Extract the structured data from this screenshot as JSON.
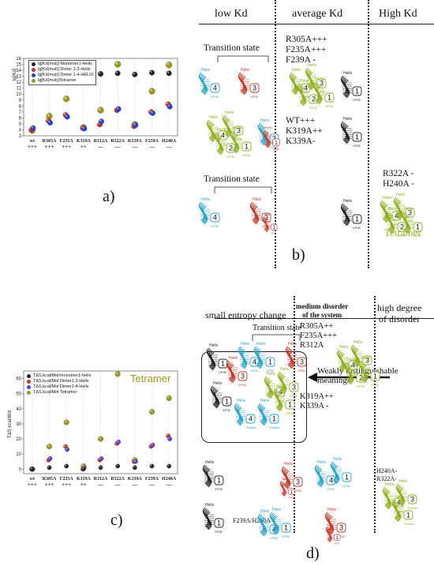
{
  "panel_labels": {
    "a": "a)",
    "b": "b)",
    "c": "c)",
    "d": "d)"
  },
  "chart_data": [
    {
      "type": "scatter",
      "ylabel": "lg[Kd]",
      "ylim": [
        3,
        16
      ],
      "yticks": [
        3,
        4,
        5,
        6,
        7,
        8,
        9,
        10,
        11,
        12,
        13,
        14,
        15,
        16
      ],
      "categories": [
        "wt",
        "R305A",
        "F235A",
        "K319A",
        "R312A",
        "R322A",
        "K339A",
        "F239A",
        "H240A"
      ],
      "effects": [
        "+++",
        "+++",
        "+++",
        "++",
        "—",
        "—",
        "—",
        "—",
        "—"
      ],
      "legend": "top-left",
      "series": [
        {
          "name": "lg[Kd(mut)] Monomer1-Helix",
          "color": "#222222",
          "values": [
            13.5,
            13.5,
            13.6,
            13.4,
            13.4,
            13.5,
            13.3,
            13.6,
            13.5
          ]
        },
        {
          "name": "lg[Kd(mut)] Dimer 1-3-Helix",
          "color": "#d62728",
          "values": [
            4.0,
            5.5,
            6.5,
            4.3,
            4.9,
            7.3,
            4.6,
            7.0,
            8.3
          ]
        },
        {
          "name": "lg[Kd(mut)] Dimer 1-4-HELIX",
          "color": "#2a3fd6",
          "values": [
            4.3,
            5.2,
            6.2,
            4.2,
            5.4,
            7.5,
            4.8,
            6.8,
            7.9
          ]
        },
        {
          "name": "lg[Kd(mut)]Tetramer",
          "color": "#9a9a1e",
          "values": [
            3.9,
            6.3,
            9.2,
            4.4,
            7.3,
            15.0,
            4.9,
            10.5,
            14.9
          ]
        }
      ]
    },
    {
      "type": "scatter",
      "ylabel": "TΔS kcal/Mol",
      "ylim": [
        -3,
        65
      ],
      "yticks": [
        0,
        10,
        20,
        30,
        40,
        50,
        60
      ],
      "categories": [
        "wt",
        "R305A",
        "F235A",
        "K319A",
        "R312A",
        "R322A",
        "K339A",
        "F239A",
        "H240A"
      ],
      "effects": [
        "+++",
        "+++",
        "+++",
        "++",
        "—",
        "—",
        "—",
        "—",
        "—"
      ],
      "legend": "top-left",
      "annotation": "Tetramer",
      "series": [
        {
          "name": "TΔS,kcal/Mol/monomer1-helix",
          "color": "#222222",
          "values": [
            0,
            1,
            2,
            0,
            1,
            2,
            1,
            2,
            2
          ]
        },
        {
          "name": "TΔS,kcal/Mol Dimer1-3-Helix",
          "color": "#c0392b",
          "values": [
            0,
            6,
            15,
            0,
            6,
            17,
            5,
            15,
            22
          ]
        },
        {
          "name": "TΔS,kcal/Mol Dimer1-4-Helix",
          "color": "#5e3fd6",
          "values": [
            0,
            7,
            13,
            1,
            7,
            18,
            5,
            16,
            20
          ]
        },
        {
          "name": "TΔS,kcal/Mol Tetramer",
          "color": "#9a9a1e",
          "values": [
            0,
            15,
            31,
            2,
            20,
            63,
            6,
            38,
            47
          ]
        }
      ]
    }
  ],
  "panel_b": {
    "columns": {
      "low": "low Kd",
      "average": "average Kd",
      "high": "High Kd"
    },
    "transition_top": "Transition state",
    "transition_bottom": "Transition state",
    "group1": "R305A+++\nF235A+++\nF239A -",
    "group2": "WT+++\nK319A++\nK339A-",
    "group3": "R322A -\nH240A -",
    "tetramer": "Tetramer",
    "labels": {
      "helix": "Helix",
      "vp": "VP35",
      "n1": "1",
      "n2": "2",
      "n3": "3",
      "n4": "4"
    }
  },
  "panel_d": {
    "columns": {
      "small": "small entropy change",
      "medium": "medium disorder\nof the system",
      "high": "high degree\nof disorder"
    },
    "transition": "Transition state",
    "group1": "R305A++\nF235A+++\nR312A",
    "weak": "Weakly distinguishable\nmeanings",
    "group2": "K319A++\nK339A -",
    "group3": "H240A-\nR322A-",
    "bottom_label": "F239A/H240A",
    "labels": {
      "helix": "Helix",
      "vp": "VP35",
      "protein": "Protein",
      "n1": "1",
      "n2": "2",
      "n3": "3",
      "n4": "4"
    }
  }
}
